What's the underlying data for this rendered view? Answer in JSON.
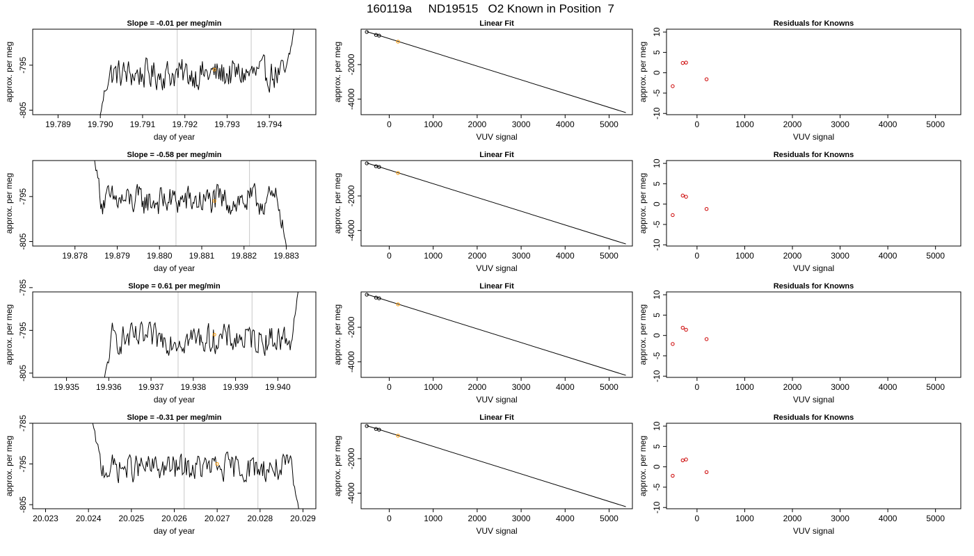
{
  "figure": {
    "title": "160119a     ND19515   O2 Known in Position  7",
    "colors": {
      "line": "#000000",
      "marker_known": "#000000",
      "marker_sample": "#ff9900",
      "residual": "#cc0000",
      "vline": "#c8c8c8"
    }
  },
  "chart_data": [
    {
      "type": "line",
      "panel": "time-series-1",
      "title": "Slope =  -0.01  per meg/min",
      "xlabel": "day of year",
      "ylabel": "approx. per meg",
      "xlim": [
        19.7884,
        19.7951
      ],
      "ylim": [
        -806,
        -787
      ],
      "xticks": [
        19.789,
        19.79,
        19.791,
        19.792,
        19.793,
        19.794
      ],
      "xtick_labels": [
        "19.789",
        "19.790",
        "19.791",
        "19.792",
        "19.793",
        "19.794"
      ],
      "yticks": [
        -805,
        -795
      ],
      "ytick_labels": [
        "-805",
        "-795"
      ],
      "vlines": [
        19.79182,
        19.79357
      ],
      "trace_start": 19.79,
      "trace_end": 19.7946,
      "trace_start_y": -806,
      "trace_end_y": -786,
      "level": -797,
      "highlight": {
        "x": 19.7927,
        "y": -796
      }
    },
    {
      "type": "line",
      "panel": "time-series-2",
      "title": "Slope =  -0.58  per meg/min",
      "xlabel": "day of year",
      "ylabel": "approx. per meg",
      "xlim": [
        19.877,
        19.8837
      ],
      "ylim": [
        -806,
        -787
      ],
      "xticks": [
        19.878,
        19.879,
        19.88,
        19.881,
        19.882,
        19.883
      ],
      "xtick_labels": [
        "19.878",
        "19.879",
        "19.880",
        "19.881",
        "19.882",
        "19.883"
      ],
      "yticks": [
        -805,
        -795
      ],
      "ytick_labels": [
        "-805",
        "-795"
      ],
      "vlines": [
        19.88039,
        19.88213
      ],
      "trace_start": 19.87845,
      "trace_end": 19.883,
      "trace_start_y": -786,
      "trace_end_y": -806,
      "level": -796,
      "highlight": {
        "x": 19.8813,
        "y": -796
      }
    },
    {
      "type": "line",
      "panel": "time-series-3",
      "title": "Slope =  0.61  per meg/min",
      "xlabel": "day of year",
      "ylabel": "approx. per meg",
      "xlim": [
        19.9342,
        19.9409
      ],
      "ylim": [
        -806,
        -786
      ],
      "xticks": [
        19.935,
        19.936,
        19.937,
        19.938,
        19.939,
        19.94
      ],
      "xtick_labels": [
        "19.935",
        "19.936",
        "19.937",
        "19.938",
        "19.939",
        "19.940"
      ],
      "yticks": [
        -805,
        -795,
        -785
      ],
      "ytick_labels": [
        "-805",
        "-795",
        "-785"
      ],
      "vlines": [
        19.93764,
        19.93939
      ],
      "trace_start": 19.9359,
      "trace_end": 19.9405,
      "trace_start_y": -806,
      "trace_end_y": -785,
      "level": -797,
      "highlight": {
        "x": 19.9385,
        "y": -796
      }
    },
    {
      "type": "line",
      "panel": "time-series-4",
      "title": "Slope =  -0.31  per meg/min",
      "xlabel": "day of year",
      "ylabel": "approx. per meg",
      "xlim": [
        20.0227,
        20.0293
      ],
      "ylim": [
        -806,
        -785
      ],
      "xticks": [
        20.023,
        20.024,
        20.025,
        20.026,
        20.027,
        20.028,
        20.029
      ],
      "xtick_labels": [
        "20.023",
        "20.024",
        "20.025",
        "20.026",
        "20.027",
        "20.028",
        "20.029"
      ],
      "yticks": [
        -805,
        -795,
        -785
      ],
      "ytick_labels": [
        "-805",
        "-795",
        "-785"
      ],
      "vlines": [
        20.02623,
        20.02795
      ],
      "trace_start": 20.0241,
      "trace_end": 20.0289,
      "trace_start_y": -785,
      "trace_end_y": -806,
      "level": -796,
      "highlight": {
        "x": 20.027,
        "y": -795
      }
    },
    {
      "type": "scatter",
      "panel": "linear-fit-1",
      "title": "Linear Fit",
      "xlabel": "VUV signal",
      "ylabel": "approx. per meg",
      "xlim": [
        -640,
        5530
      ],
      "ylim": [
        -4900,
        50
      ],
      "xticks": [
        0,
        1000,
        2000,
        3000,
        4000,
        5000
      ],
      "xtick_labels": [
        "0",
        "1000",
        "2000",
        "3000",
        "4000",
        "5000"
      ],
      "yticks": [
        -4000,
        -2000
      ],
      "ytick_labels": [
        "-4000",
        "-2000"
      ],
      "line": {
        "x": [
          -510,
          5380
        ],
        "y": [
          -90,
          -4780
        ]
      },
      "points": [
        {
          "x": -510,
          "y": -110
        },
        {
          "x": -300,
          "y": -280
        },
        {
          "x": -230,
          "y": -320
        },
        {
          "x": 200,
          "y": -670
        }
      ]
    },
    {
      "type": "scatter",
      "panel": "linear-fit-2",
      "title": "Linear Fit",
      "xlabel": "VUV signal",
      "ylabel": "approx. per meg",
      "xlim": [
        -640,
        5530
      ],
      "ylim": [
        -4900,
        50
      ],
      "xticks": [
        0,
        1000,
        2000,
        3000,
        4000,
        5000
      ],
      "xtick_labels": [
        "0",
        "1000",
        "2000",
        "3000",
        "4000",
        "5000"
      ],
      "yticks": [
        -4000,
        -2000
      ],
      "ytick_labels": [
        "-4000",
        "-2000"
      ],
      "line": {
        "x": [
          -510,
          5380
        ],
        "y": [
          -90,
          -4780
        ]
      },
      "points": [
        {
          "x": -510,
          "y": -110
        },
        {
          "x": -300,
          "y": -280
        },
        {
          "x": -230,
          "y": -320
        },
        {
          "x": 200,
          "y": -670
        }
      ]
    },
    {
      "type": "scatter",
      "panel": "linear-fit-3",
      "title": "Linear Fit",
      "xlabel": "VUV signal",
      "ylabel": "approx. per meg",
      "xlim": [
        -640,
        5530
      ],
      "ylim": [
        -4900,
        50
      ],
      "xticks": [
        0,
        1000,
        2000,
        3000,
        4000,
        5000
      ],
      "xtick_labels": [
        "0",
        "1000",
        "2000",
        "3000",
        "4000",
        "5000"
      ],
      "yticks": [
        -4000,
        -2000
      ],
      "ytick_labels": [
        "-4000",
        "-2000"
      ],
      "line": {
        "x": [
          -510,
          5380
        ],
        "y": [
          -90,
          -4780
        ]
      },
      "points": [
        {
          "x": -510,
          "y": -110
        },
        {
          "x": -300,
          "y": -280
        },
        {
          "x": -230,
          "y": -320
        },
        {
          "x": 200,
          "y": -670
        }
      ]
    },
    {
      "type": "scatter",
      "panel": "linear-fit-4",
      "title": "Linear Fit",
      "xlabel": "VUV signal",
      "ylabel": "approx. per meg",
      "xlim": [
        -640,
        5530
      ],
      "ylim": [
        -4900,
        50
      ],
      "xticks": [
        0,
        1000,
        2000,
        3000,
        4000,
        5000
      ],
      "xtick_labels": [
        "0",
        "1000",
        "2000",
        "3000",
        "4000",
        "5000"
      ],
      "yticks": [
        -4000,
        -2000
      ],
      "ytick_labels": [
        "-4000",
        "-2000"
      ],
      "line": {
        "x": [
          -510,
          5380
        ],
        "y": [
          -90,
          -4780
        ]
      },
      "points": [
        {
          "x": -510,
          "y": -110
        },
        {
          "x": -300,
          "y": -280
        },
        {
          "x": -230,
          "y": -320
        },
        {
          "x": 200,
          "y": -670
        }
      ]
    },
    {
      "type": "scatter",
      "panel": "residuals-1",
      "title": "Residuals for Knowns",
      "xlabel": "VUV signal",
      "ylabel": "approx. per meg",
      "xlim": [
        -640,
        5530
      ],
      "ylim": [
        -10.3,
        10.7
      ],
      "xticks": [
        0,
        1000,
        2000,
        3000,
        4000,
        5000
      ],
      "xtick_labels": [
        "0",
        "1000",
        "2000",
        "3000",
        "4000",
        "5000"
      ],
      "yticks": [
        -10,
        -5,
        0,
        5,
        10
      ],
      "ytick_labels": [
        "-10",
        "-5",
        "0",
        "5",
        "10"
      ],
      "points": [
        {
          "x": -510,
          "y": -3.3
        },
        {
          "x": -300,
          "y": 2.4
        },
        {
          "x": -230,
          "y": 2.5
        },
        {
          "x": 200,
          "y": -1.6
        }
      ]
    },
    {
      "type": "scatter",
      "panel": "residuals-2",
      "title": "Residuals for Knowns",
      "xlabel": "VUV signal",
      "ylabel": "approx. per meg",
      "xlim": [
        -640,
        5530
      ],
      "ylim": [
        -10.3,
        10.7
      ],
      "xticks": [
        0,
        1000,
        2000,
        3000,
        4000,
        5000
      ],
      "xtick_labels": [
        "0",
        "1000",
        "2000",
        "3000",
        "4000",
        "5000"
      ],
      "yticks": [
        -10,
        -5,
        0,
        5,
        10
      ],
      "ytick_labels": [
        "-10",
        "-5",
        "0",
        "5",
        "10"
      ],
      "points": [
        {
          "x": -510,
          "y": -2.7
        },
        {
          "x": -300,
          "y": 2.1
        },
        {
          "x": -230,
          "y": 1.8
        },
        {
          "x": 200,
          "y": -1.2
        }
      ]
    },
    {
      "type": "scatter",
      "panel": "residuals-3",
      "title": "Residuals for Knowns",
      "xlabel": "VUV signal",
      "ylabel": "approx. per meg",
      "xlim": [
        -640,
        5530
      ],
      "ylim": [
        -10.3,
        10.7
      ],
      "xticks": [
        0,
        1000,
        2000,
        3000,
        4000,
        5000
      ],
      "xtick_labels": [
        "0",
        "1000",
        "2000",
        "3000",
        "4000",
        "5000"
      ],
      "yticks": [
        -10,
        -5,
        0,
        5,
        10
      ],
      "ytick_labels": [
        "-10",
        "-5",
        "0",
        "5",
        "10"
      ],
      "points": [
        {
          "x": -510,
          "y": -2.1
        },
        {
          "x": -300,
          "y": 1.9
        },
        {
          "x": -230,
          "y": 1.4
        },
        {
          "x": 200,
          "y": -0.9
        }
      ]
    },
    {
      "type": "scatter",
      "panel": "residuals-4",
      "title": "Residuals for Knowns",
      "xlabel": "VUV signal",
      "ylabel": "approx. per meg",
      "xlim": [
        -640,
        5530
      ],
      "ylim": [
        -10.3,
        10.7
      ],
      "xticks": [
        0,
        1000,
        2000,
        3000,
        4000,
        5000
      ],
      "xtick_labels": [
        "0",
        "1000",
        "2000",
        "3000",
        "4000",
        "5000"
      ],
      "yticks": [
        -10,
        -5,
        0,
        5,
        10
      ],
      "ytick_labels": [
        "-10",
        "-5",
        "0",
        "5",
        "10"
      ],
      "points": [
        {
          "x": -510,
          "y": -2.2
        },
        {
          "x": -300,
          "y": 1.6
        },
        {
          "x": -230,
          "y": 1.8
        },
        {
          "x": 200,
          "y": -1.3
        }
      ]
    }
  ]
}
